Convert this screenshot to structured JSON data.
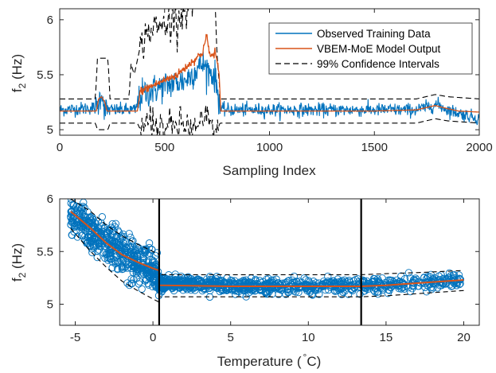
{
  "chart_data": [
    {
      "type": "line",
      "xlabel": "Sampling Index",
      "ylabel_main": "f",
      "ylabel_sub": "2",
      "ylabel_rest": " (Hz)",
      "xlim": [
        0,
        2000
      ],
      "ylim": [
        4.95,
        6.1
      ],
      "xticks": [
        0,
        500,
        1000,
        1500,
        2000
      ],
      "xtick_labels": [
        "0",
        "500",
        "1000",
        "1500",
        "2000"
      ],
      "yticks": [
        5,
        5.5,
        6
      ],
      "ytick_labels": [
        "5",
        "5.5",
        "6"
      ],
      "grid": false,
      "legend_position": "top-right",
      "series": [
        {
          "name": "Observed Training Data",
          "color": "#0072BD",
          "style": "solid",
          "segments": [
            [
              0,
              5.18
            ],
            [
              180,
              5.2
            ],
            [
              200,
              5.35
            ],
            [
              215,
              5.18
            ],
            [
              360,
              5.18
            ],
            [
              390,
              5.32
            ],
            [
              500,
              5.4
            ],
            [
              600,
              5.45
            ],
            [
              680,
              5.6
            ],
            [
              740,
              5.48
            ],
            [
              770,
              5.18
            ],
            [
              1000,
              5.18
            ],
            [
              1500,
              5.18
            ],
            [
              1700,
              5.18
            ],
            [
              1800,
              5.23
            ],
            [
              1850,
              5.18
            ],
            [
              2000,
              5.1
            ]
          ]
        },
        {
          "name": "VBEM-MoE Model Output",
          "color": "#D95319",
          "style": "solid",
          "points": [
            [
              0,
              5.17
            ],
            [
              175,
              5.17
            ],
            [
              185,
              5.28
            ],
            [
              200,
              5.3
            ],
            [
              215,
              5.25
            ],
            [
              225,
              5.17
            ],
            [
              370,
              5.17
            ],
            [
              385,
              5.35
            ],
            [
              420,
              5.38
            ],
            [
              500,
              5.45
            ],
            [
              560,
              5.5
            ],
            [
              620,
              5.6
            ],
            [
              680,
              5.7
            ],
            [
              700,
              5.85
            ],
            [
              720,
              5.65
            ],
            [
              740,
              5.72
            ],
            [
              760,
              5.5
            ],
            [
              768,
              5.17
            ],
            [
              1000,
              5.17
            ],
            [
              1500,
              5.17
            ],
            [
              1700,
              5.18
            ],
            [
              1790,
              5.22
            ],
            [
              1830,
              5.2
            ],
            [
              1900,
              5.17
            ],
            [
              2000,
              5.16
            ]
          ]
        },
        {
          "name": "99% Confidence Intervals",
          "color": "#000000",
          "style": "dashed",
          "upper": [
            [
              0,
              5.28
            ],
            [
              170,
              5.28
            ],
            [
              180,
              5.65
            ],
            [
              230,
              5.65
            ],
            [
              240,
              5.28
            ],
            [
              330,
              5.28
            ],
            [
              340,
              5.6
            ],
            [
              355,
              5.5
            ],
            [
              380,
              5.72
            ],
            [
              420,
              5.9
            ],
            [
              500,
              5.95
            ],
            [
              580,
              6.05
            ],
            [
              650,
              6.2
            ],
            [
              700,
              6.4
            ],
            [
              740,
              6.1
            ],
            [
              765,
              5.28
            ],
            [
              1000,
              5.28
            ],
            [
              1700,
              5.28
            ],
            [
              1790,
              5.32
            ],
            [
              1850,
              5.3
            ],
            [
              2000,
              5.28
            ]
          ],
          "lower": [
            [
              0,
              5.06
            ],
            [
              170,
              5.06
            ],
            [
              180,
              5.0
            ],
            [
              230,
              5.0
            ],
            [
              240,
              5.06
            ],
            [
              370,
              5.06
            ],
            [
              390,
              4.98
            ],
            [
              420,
              5.1
            ],
            [
              500,
              5.0
            ],
            [
              580,
              5.05
            ],
            [
              650,
              5.0
            ],
            [
              700,
              5.1
            ],
            [
              740,
              4.98
            ],
            [
              765,
              5.06
            ],
            [
              1000,
              5.06
            ],
            [
              1700,
              5.06
            ],
            [
              1790,
              5.1
            ],
            [
              1850,
              5.08
            ],
            [
              2000,
              5.06
            ]
          ]
        }
      ]
    },
    {
      "type": "scatter",
      "xlabel_main": "Temperature (",
      "xlabel_deg": "°",
      "xlabel_rest": "C)",
      "ylabel_main": "f",
      "ylabel_sub": "2",
      "ylabel_rest": " (Hz)",
      "xlim": [
        -6,
        21
      ],
      "ylim": [
        4.8,
        6
      ],
      "xticks": [
        -5,
        0,
        5,
        10,
        15,
        20
      ],
      "xtick_labels": [
        "-5",
        "0",
        "5",
        "10",
        "15",
        "20"
      ],
      "yticks": [
        5,
        5.5,
        6
      ],
      "ytick_labels": [
        "5",
        "5.5",
        "6"
      ],
      "grid": false,
      "vertical_lines": [
        0.4,
        13.4
      ],
      "series": [
        {
          "name": "Observed Training Data",
          "color": "#0072BD",
          "style": "circles",
          "cluster": [
            [
              -5.2,
              5.85
            ],
            [
              -4,
              5.7
            ],
            [
              -3,
              5.6
            ],
            [
              -2,
              5.5
            ],
            [
              -1,
              5.4
            ],
            [
              0,
              5.33
            ],
            [
              0.4,
              5.2
            ],
            [
              5,
              5.17
            ],
            [
              10,
              5.17
            ],
            [
              13.4,
              5.18
            ],
            [
              17,
              5.2
            ],
            [
              20,
              5.23
            ]
          ]
        },
        {
          "name": "VBEM-MoE Model Output",
          "color": "#D95319",
          "style": "solid",
          "points": [
            [
              -5.3,
              5.88
            ],
            [
              -4,
              5.72
            ],
            [
              -3,
              5.58
            ],
            [
              -2,
              5.47
            ],
            [
              -1,
              5.4
            ],
            [
              0,
              5.34
            ],
            [
              0.4,
              5.32
            ],
            [
              0.4,
              5.18
            ],
            [
              5,
              5.17
            ],
            [
              10,
              5.17
            ],
            [
              13.4,
              5.17
            ],
            [
              15,
              5.18
            ],
            [
              17,
              5.2
            ],
            [
              20,
              5.23
            ]
          ]
        },
        {
          "name": "99% Confidence Intervals",
          "color": "#000000",
          "style": "dashed",
          "upper": [
            [
              -5.3,
              6.0
            ],
            [
              -4,
              5.88
            ],
            [
              -3,
              5.75
            ],
            [
              -2,
              5.65
            ],
            [
              -1,
              5.57
            ],
            [
              0,
              5.5
            ],
            [
              0.4,
              5.47
            ],
            [
              0.4,
              5.28
            ],
            [
              5,
              5.28
            ],
            [
              10,
              5.28
            ],
            [
              13.4,
              5.28
            ],
            [
              15,
              5.29
            ],
            [
              17,
              5.3
            ],
            [
              20,
              5.32
            ]
          ],
          "lower": [
            [
              -5.3,
              5.72
            ],
            [
              -4,
              5.5
            ],
            [
              -3,
              5.35
            ],
            [
              -2,
              5.22
            ],
            [
              -1,
              5.13
            ],
            [
              0,
              5.05
            ],
            [
              0.4,
              5.02
            ],
            [
              0.4,
              5.07
            ],
            [
              5,
              5.07
            ],
            [
              10,
              5.07
            ],
            [
              13.4,
              5.07
            ],
            [
              15,
              5.08
            ],
            [
              17,
              5.1
            ],
            [
              20,
              5.13
            ]
          ]
        }
      ]
    }
  ],
  "legend": [
    {
      "label": "Observed Training Data",
      "color": "#0072BD",
      "style": "solid"
    },
    {
      "label": "VBEM-MoE Model Output",
      "color": "#D95319",
      "style": "solid"
    },
    {
      "label": "99% Confidence Intervals",
      "color": "#000000",
      "style": "dashed"
    }
  ]
}
